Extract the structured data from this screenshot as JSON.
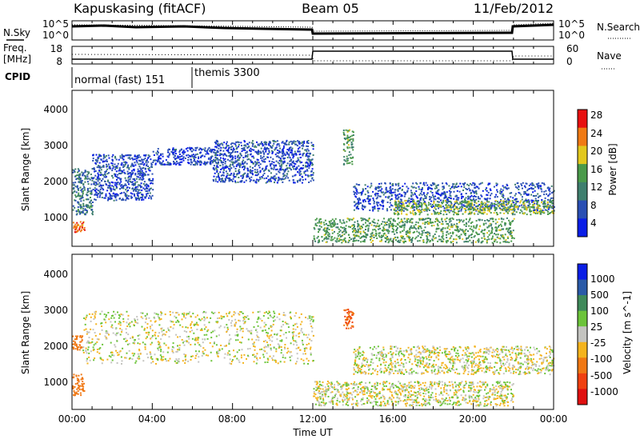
{
  "header": {
    "station": "Kapuskasing (fitACF)",
    "beam": "Beam 05",
    "date": "11/Feb/2012"
  },
  "noise_panel": {
    "left_label": "N.Sky",
    "left_ticks": [
      "10^5",
      "10^0"
    ],
    "right_ticks": [
      "10^5",
      "10^0"
    ],
    "right_label": "N.Search"
  },
  "freq_panel": {
    "left_label_1": "Freq.",
    "left_label_2": "[MHz]",
    "left_ticks": [
      "18",
      "8"
    ],
    "right_ticks": [
      "60",
      "0"
    ],
    "right_label": "Nave"
  },
  "cpid_panel": {
    "label": "CPID",
    "mode_1": "normal (fast) 151",
    "mode_2": "themis 3300"
  },
  "x_axis": {
    "ticks": [
      "00:00",
      "04:00",
      "08:00",
      "12:00",
      "16:00",
      "20:00",
      "00:00"
    ],
    "label": "Time UT"
  },
  "colors": {
    "axis": "#000000",
    "power_scale": [
      "#0a1ee6",
      "#2a4fb4",
      "#3f7f6e",
      "#4a9a4a",
      "#e2c81e",
      "#f07a14",
      "#e81010"
    ],
    "velocity_scale": [
      "#0a1ee6",
      "#2a5aa8",
      "#3f8a5a",
      "#6cc43a",
      "#c4c4c0",
      "#f4b41e",
      "#f07814",
      "#f04010",
      "#e01010"
    ]
  },
  "chart_data": [
    {
      "type": "heatmap",
      "panel": "power",
      "xlabel": "",
      "ylabel": "Slant Range [km]",
      "x_range_hours_ut": [
        0,
        24
      ],
      "y_range_km": [
        180,
        4600
      ],
      "y_ticks": [
        "1000",
        "2000",
        "3000",
        "4000"
      ],
      "colorbar": {
        "label": "Power [dB]",
        "ticks": [
          "4",
          "8",
          "12",
          "16",
          "20",
          "24",
          "28"
        ],
        "range": [
          0,
          30
        ]
      },
      "regions": [
        {
          "t_start": 0.0,
          "t_end": 1.0,
          "range_start_km": 1100,
          "range_end_km": 2400,
          "power_db": 10
        },
        {
          "t_start": 0.0,
          "t_end": 0.6,
          "range_start_km": 600,
          "range_end_km": 900,
          "power_db": 24
        },
        {
          "t_start": 1.0,
          "t_end": 4.0,
          "range_start_km": 1500,
          "range_end_km": 2800,
          "power_db": 6
        },
        {
          "t_start": 4.0,
          "t_end": 7.0,
          "range_start_km": 2500,
          "range_end_km": 3000,
          "power_db": 5
        },
        {
          "t_start": 7.0,
          "t_end": 12.0,
          "range_start_km": 2000,
          "range_end_km": 3200,
          "power_db": 6
        },
        {
          "t_start": 12.0,
          "t_end": 22.0,
          "range_start_km": 300,
          "range_end_km": 1000,
          "power_db": 14
        },
        {
          "t_start": 13.5,
          "t_end": 14.0,
          "range_start_km": 2500,
          "range_end_km": 3500,
          "power_db": 14
        },
        {
          "t_start": 14.0,
          "t_end": 24.0,
          "range_start_km": 1200,
          "range_end_km": 2000,
          "power_db": 6
        },
        {
          "t_start": 16.0,
          "t_end": 24.0,
          "range_start_km": 1100,
          "range_end_km": 1500,
          "power_db": 16
        }
      ]
    },
    {
      "type": "heatmap",
      "panel": "velocity",
      "xlabel": "Time UT",
      "ylabel": "Slant Range [km]",
      "x_range_hours_ut": [
        0,
        24
      ],
      "y_range_km": [
        180,
        4600
      ],
      "y_ticks": [
        "1000",
        "2000",
        "3000",
        "4000"
      ],
      "colorbar": {
        "label": "Velocity [m s^-1]",
        "ticks": [
          "1000",
          "500",
          "100",
          "25",
          "-25",
          "-100",
          "-500",
          "-1000"
        ]
      },
      "regions": [
        {
          "t_start": 0.0,
          "t_end": 0.6,
          "range_start_km": 600,
          "range_end_km": 1200,
          "velocity_ms": -200
        },
        {
          "t_start": 0.0,
          "t_end": 0.5,
          "range_start_km": 1900,
          "range_end_km": 2300,
          "velocity_ms": -200
        },
        {
          "t_start": 0.5,
          "t_end": 12.0,
          "range_start_km": 1500,
          "range_end_km": 3000,
          "velocity_ms": 0
        },
        {
          "t_start": 12.0,
          "t_end": 22.0,
          "range_start_km": 300,
          "range_end_km": 1000,
          "velocity_ms": 0
        },
        {
          "t_start": 13.5,
          "t_end": 14.0,
          "range_start_km": 2500,
          "range_end_km": 3100,
          "velocity_ms": -300
        },
        {
          "t_start": 14.0,
          "t_end": 24.0,
          "range_start_km": 1200,
          "range_end_km": 2000,
          "velocity_ms": 0
        }
      ]
    }
  ]
}
